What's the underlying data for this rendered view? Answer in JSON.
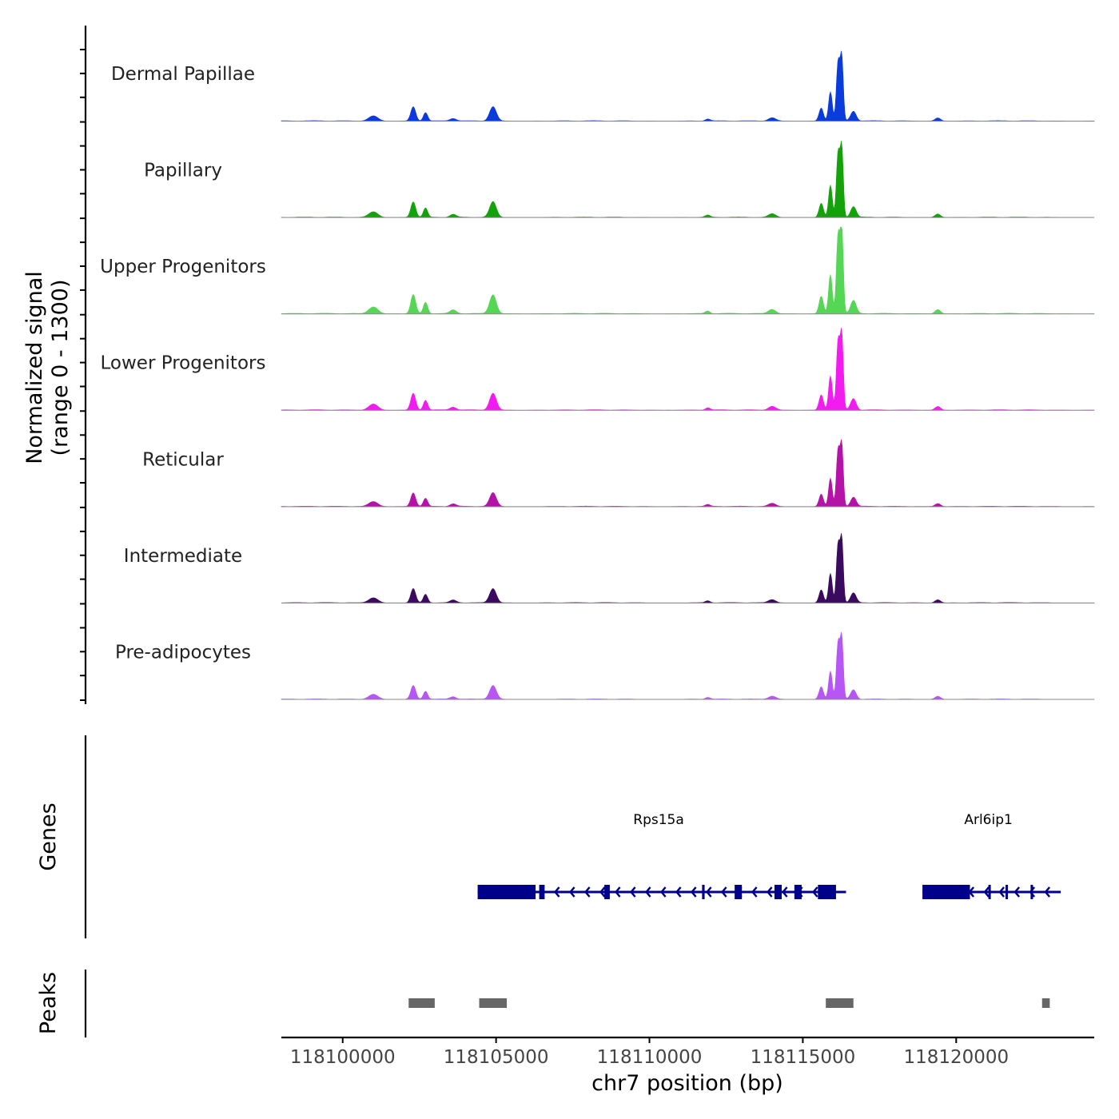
{
  "chart_data": {
    "type": "area",
    "y_axis_label": "Normalized signal",
    "y_axis_range_label": "(range 0 - 1300)",
    "ylim": [
      0,
      1300
    ],
    "x_axis_label": "chr7 position (bp)",
    "xlim": [
      118098000,
      118124500
    ],
    "x_ticks": [
      118100000,
      118105000,
      118110000,
      118115000,
      118120000
    ],
    "x_tick_labels": [
      "118100000",
      "118105000",
      "118110000",
      "118115000",
      "118120000"
    ],
    "peak_profile": [
      {
        "pos": 118101000,
        "height": 0.08,
        "width": 150
      },
      {
        "pos": 118102300,
        "height": 0.22,
        "width": 80
      },
      {
        "pos": 118102700,
        "height": 0.13,
        "width": 70
      },
      {
        "pos": 118103600,
        "height": 0.04,
        "width": 100
      },
      {
        "pos": 118104900,
        "height": 0.22,
        "width": 110
      },
      {
        "pos": 118111900,
        "height": 0.03,
        "width": 80
      },
      {
        "pos": 118114000,
        "height": 0.05,
        "width": 120
      },
      {
        "pos": 118115600,
        "height": 0.2,
        "width": 70
      },
      {
        "pos": 118115900,
        "height": 0.45,
        "width": 60
      },
      {
        "pos": 118116150,
        "height": 0.9,
        "width": 55
      },
      {
        "pos": 118116270,
        "height": 0.97,
        "width": 50
      },
      {
        "pos": 118116650,
        "height": 0.15,
        "width": 90
      },
      {
        "pos": 118119400,
        "height": 0.05,
        "width": 90
      }
    ],
    "series": [
      {
        "name": "Dermal Papillae",
        "color": "#0a3bdc",
        "scale": 0.75
      },
      {
        "name": "Papillary",
        "color": "#14a20a",
        "scale": 0.82
      },
      {
        "name": "Upper Progenitors",
        "color": "#55d655",
        "scale": 1.0
      },
      {
        "name": "Lower Progenitors",
        "color": "#f31cf0",
        "scale": 0.88
      },
      {
        "name": "Reticular",
        "color": "#b512a8",
        "scale": 0.72
      },
      {
        "name": "Intermediate",
        "color": "#3a0a5e",
        "scale": 0.75
      },
      {
        "name": "Pre-adipocytes",
        "color": "#b656f5",
        "scale": 0.72
      }
    ],
    "genes_track": {
      "label": "Genes",
      "color": "#00008b",
      "genes": [
        {
          "name": "Rps15a",
          "start": 118104400,
          "end": 118116200,
          "strand": "-"
        },
        {
          "name": "Arl6ip1",
          "start": 118118900,
          "end": 118123200,
          "strand": "-"
        }
      ]
    },
    "peaks_track": {
      "label": "Peaks",
      "color": "#666666",
      "peaks": [
        {
          "start": 118102150,
          "end": 118103000
        },
        {
          "start": 118104450,
          "end": 118105350
        },
        {
          "start": 118115750,
          "end": 118116650
        },
        {
          "start": 118122800,
          "end": 118123050
        }
      ]
    }
  }
}
